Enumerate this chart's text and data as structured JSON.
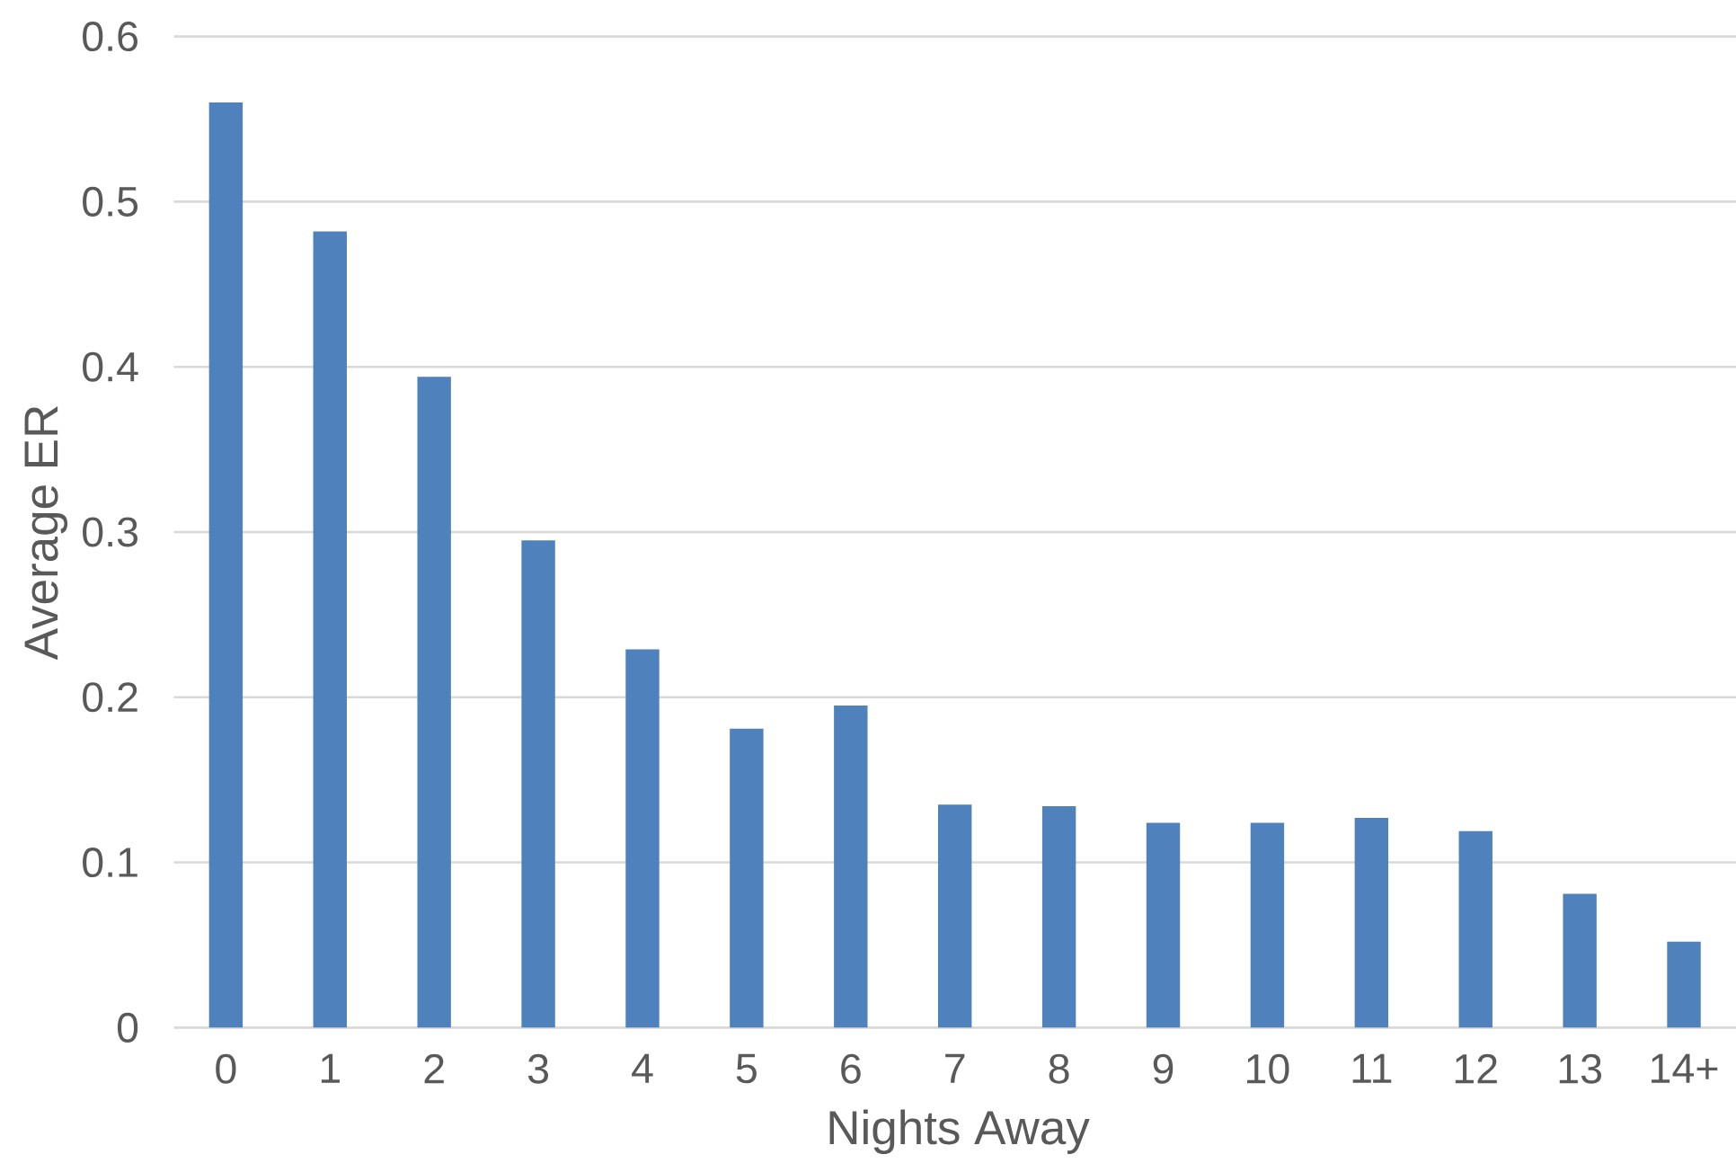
{
  "chart_data": {
    "type": "bar",
    "xlabel": "Nights Away",
    "ylabel": "Average ER",
    "categories": [
      "0",
      "1",
      "2",
      "3",
      "4",
      "5",
      "6",
      "7",
      "8",
      "9",
      "10",
      "11",
      "12",
      "13",
      "14+"
    ],
    "values": [
      0.56,
      0.482,
      0.394,
      0.295,
      0.229,
      0.181,
      0.195,
      0.135,
      0.134,
      0.124,
      0.124,
      0.127,
      0.119,
      0.081,
      0.052
    ],
    "color": "#4f81bd",
    "ylim": [
      0,
      0.6
    ],
    "yticks": [
      0,
      0.1,
      0.2,
      0.3,
      0.4,
      0.5,
      0.6
    ],
    "grid": "y"
  }
}
